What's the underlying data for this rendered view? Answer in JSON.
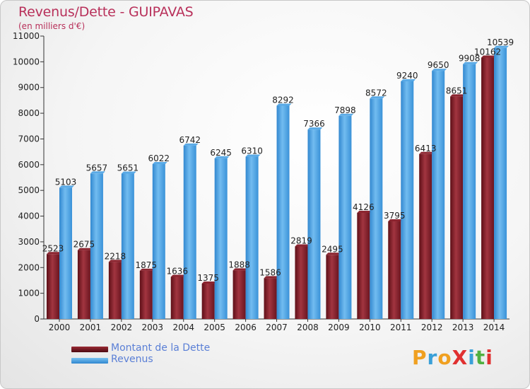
{
  "title": "Revenus/Dette - GUIPAVAS",
  "subtitle": "(en milliers d'€)",
  "legend": {
    "debt_label": "Montant de la Dette",
    "revenue_label": "Revenus"
  },
  "logo": {
    "text": "ProXiti",
    "letters": [
      {
        "char": "P",
        "color": "#f0a020"
      },
      {
        "char": "r",
        "color": "#3aa0d8"
      },
      {
        "char": "o",
        "color": "#f0a020"
      },
      {
        "char": "X",
        "color": "#e03030"
      },
      {
        "char": "i",
        "color": "#3aa0d8"
      },
      {
        "char": "t",
        "color": "#50b040"
      },
      {
        "char": "i",
        "color": "#e03030"
      }
    ]
  },
  "colors": {
    "debt": "#7a1a22",
    "debt_light": "#a8323c",
    "revenue": "#3d95da",
    "revenue_light": "#6db8ee",
    "title": "#b8305a",
    "legend_text": "#5a7fd6"
  },
  "chart_data": {
    "type": "bar",
    "title": "Revenus/Dette - GUIPAVAS",
    "subtitle": "(en milliers d'€)",
    "categories": [
      "2000",
      "2001",
      "2002",
      "2003",
      "2004",
      "2005",
      "2006",
      "2007",
      "2008",
      "2009",
      "2010",
      "2011",
      "2012",
      "2013",
      "2014"
    ],
    "series": [
      {
        "name": "Montant de la Dette",
        "values": [
          2523,
          2675,
          2218,
          1875,
          1636,
          1375,
          1888,
          1586,
          2819,
          2495,
          4126,
          3795,
          6413,
          8651,
          10162
        ],
        "labels": [
          "2523",
          "2675",
          "2218",
          "1875",
          "1636",
          "1375",
          "1888",
          "1586",
          "2819",
          "2495",
          "4126",
          "3795",
          "6413",
          "8651",
          "10162"
        ]
      },
      {
        "name": "Revenus",
        "values": [
          5103,
          5657,
          5651,
          6022,
          6742,
          6245,
          6310,
          8292,
          7366,
          7898,
          8572,
          9240,
          9650,
          9908,
          10539
        ],
        "labels": [
          "5103",
          "5657",
          "5651",
          "6022",
          "6742",
          "6245",
          "6310",
          "8292",
          "7366",
          "7898",
          "8572",
          "9240",
          "9650",
          "9908",
          "10539"
        ]
      }
    ],
    "ylim": [
      0,
      11000
    ],
    "yticks": [
      "0",
      "1000",
      "2000",
      "3000",
      "4000",
      "5000",
      "6000",
      "7000",
      "8000",
      "9000",
      "10000",
      "11000"
    ],
    "grid": false,
    "legend_position": "bottom-left"
  }
}
